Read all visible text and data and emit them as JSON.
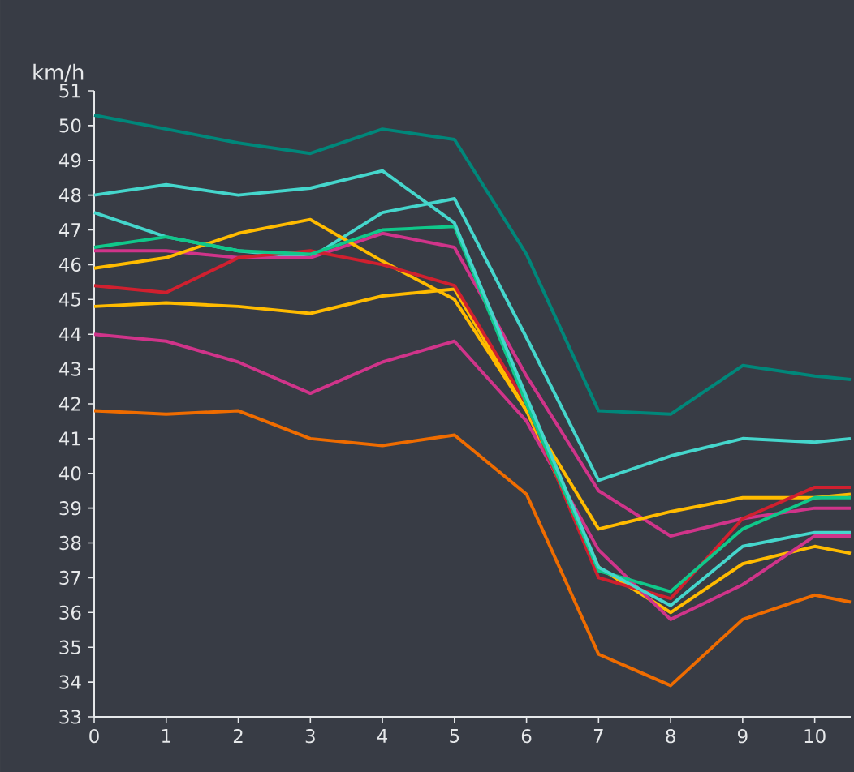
{
  "chart_data": {
    "type": "line",
    "ylabel": "km/h",
    "x": [
      0,
      1,
      2,
      3,
      4,
      5,
      6,
      7,
      8,
      9,
      10,
      10.5
    ],
    "xlim": [
      0,
      10.5
    ],
    "xticks": [
      0,
      1,
      2,
      3,
      4,
      5,
      6,
      7,
      8,
      9,
      10
    ],
    "ylim": [
      33,
      51
    ],
    "yticks": [
      33,
      34,
      35,
      36,
      37,
      38,
      39,
      40,
      41,
      42,
      43,
      44,
      45,
      46,
      47,
      48,
      49,
      50,
      51
    ],
    "grid": false,
    "marker": "none",
    "line_style": "solid",
    "series": [
      {
        "color": "#00877a",
        "values": [
          50.3,
          49.9,
          49.5,
          49.2,
          49.9,
          49.6,
          46.3,
          41.8,
          41.7,
          43.1,
          42.8,
          42.7
        ]
      },
      {
        "color": "#45d6cc",
        "values": [
          47.5,
          46.8,
          46.4,
          46.2,
          47.5,
          47.9,
          43.9,
          39.8,
          40.5,
          41.0,
          40.9,
          41.0
        ]
      },
      {
        "color": "#d0348a",
        "values": [
          46.4,
          46.4,
          46.2,
          46.2,
          46.9,
          46.5,
          42.8,
          39.5,
          38.2,
          38.7,
          39.0,
          39.0
        ]
      },
      {
        "color": "#ffbb00",
        "values": [
          45.9,
          46.2,
          46.9,
          47.3,
          46.1,
          45.0,
          41.8,
          37.3,
          36.0,
          37.4,
          37.9,
          37.7
        ]
      },
      {
        "color": "#d0348a",
        "values": [
          44.0,
          43.8,
          43.2,
          42.3,
          43.2,
          43.8,
          41.5,
          37.8,
          35.8,
          36.8,
          38.2,
          38.2
        ]
      },
      {
        "color": "#ef6c00",
        "values": [
          41.8,
          41.7,
          41.8,
          41.0,
          40.8,
          41.1,
          39.4,
          34.8,
          33.9,
          35.8,
          36.5,
          36.3
        ]
      },
      {
        "color": "#ffbb00",
        "values": [
          44.8,
          44.9,
          44.8,
          44.6,
          45.1,
          45.3,
          41.8,
          38.4,
          38.9,
          39.3,
          39.3,
          39.4
        ]
      },
      {
        "color": "#d0202f",
        "values": [
          45.4,
          45.2,
          46.2,
          46.4,
          46.0,
          45.4,
          42.0,
          37.0,
          36.4,
          38.7,
          39.6,
          39.6
        ]
      },
      {
        "color": "#10c88a",
        "values": [
          46.5,
          46.8,
          46.4,
          46.3,
          47.0,
          47.1,
          42.0,
          37.2,
          36.6,
          38.4,
          39.3,
          39.3
        ]
      },
      {
        "color": "#45d6cc",
        "values": [
          48.0,
          48.3,
          48.0,
          48.2,
          48.7,
          47.2,
          42.2,
          37.3,
          36.2,
          37.9,
          38.3,
          38.3
        ]
      }
    ]
  }
}
